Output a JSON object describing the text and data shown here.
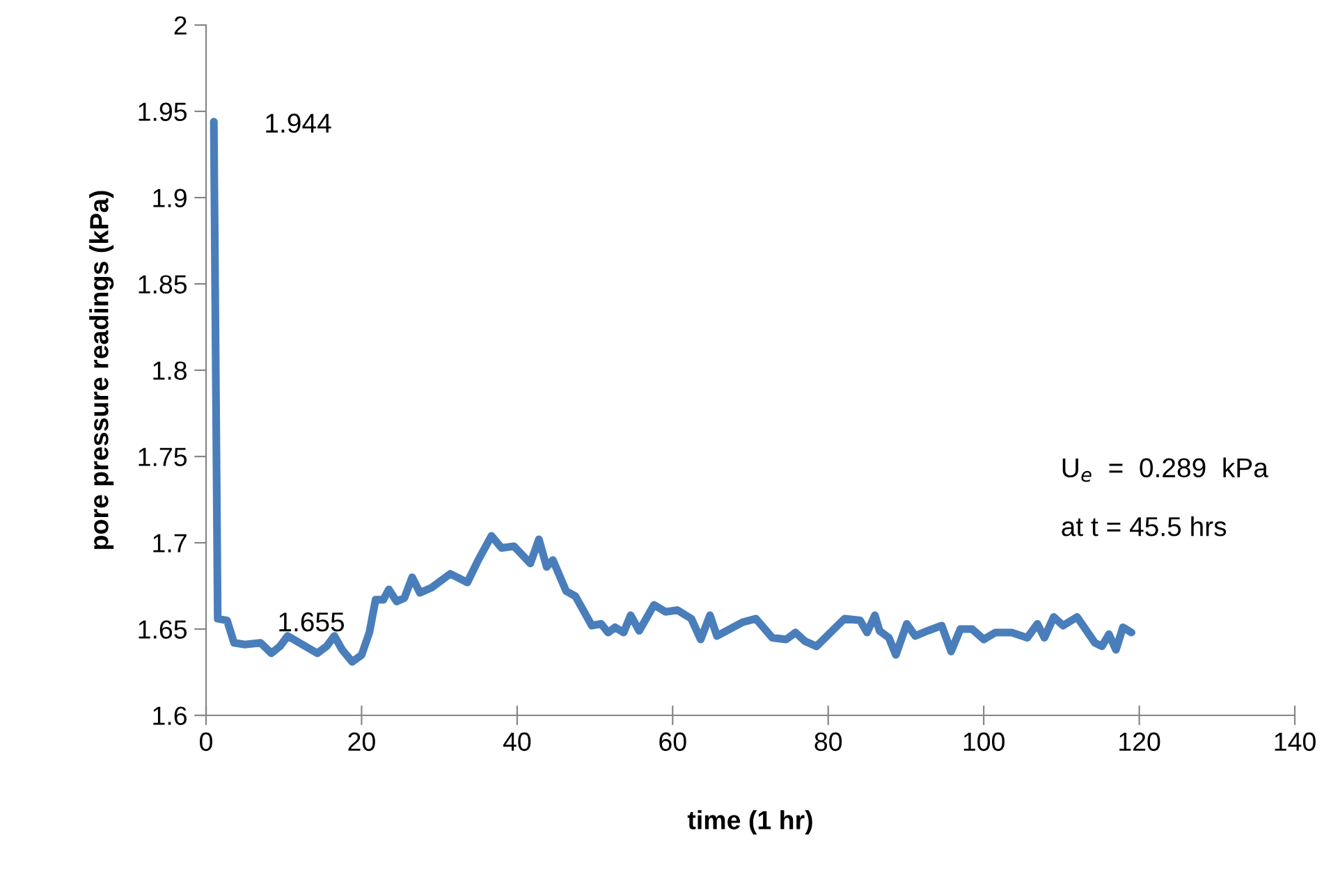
{
  "chart_data": {
    "type": "line",
    "xlabel": "time (1 hr)",
    "ylabel": "pore pressure readings (kPa)",
    "xlim": [
      0,
      140
    ],
    "xticks": [
      0,
      20,
      40,
      60,
      80,
      100,
      120,
      140
    ],
    "ylim": [
      1.6,
      2
    ],
    "yticks": [
      1.6,
      1.65,
      1.7,
      1.75,
      1.8,
      1.85,
      1.9,
      1.95,
      2
    ],
    "grid": false,
    "legend": false,
    "marker": "none",
    "line_style": "solid",
    "series": [
      {
        "color": "#4a7ebb",
        "x": [
          1,
          1.5,
          2.7,
          3.6,
          5,
          7,
          8.4,
          9.5,
          10.5,
          12,
          14.3,
          15.5,
          16.5,
          17.5,
          18.8,
          20,
          21,
          21.8,
          22.8,
          23.5,
          24.5,
          25.5,
          26.5,
          27.5,
          29,
          31.4,
          33.6,
          35,
          36.7,
          38,
          39.6,
          41.7,
          42.8,
          43.8,
          44.6,
          46.3,
          47.5,
          49.6,
          50.8,
          51.7,
          52.6,
          53.7,
          54.6,
          55.7,
          57.6,
          59.1,
          60.6,
          62.4,
          63.6,
          64.8,
          65.7,
          69,
          70.7,
          72.8,
          74.6,
          75.8,
          77,
          78.5,
          82.1,
          84.1,
          85,
          86,
          86.6,
          87.8,
          88.7,
          90.1,
          91.2,
          92.8,
          94.6,
          95.8,
          97,
          98.5,
          100,
          101.5,
          103.6,
          105.6,
          106.9,
          107.8,
          109,
          110.2,
          112,
          114.3,
          115.2,
          116.1,
          117,
          117.9,
          119
        ],
        "values": [
          1.944,
          1.656,
          1.655,
          1.642,
          1.641,
          1.642,
          1.636,
          1.64,
          1.646,
          1.642,
          1.636,
          1.64,
          1.646,
          1.638,
          1.631,
          1.635,
          1.648,
          1.667,
          1.667,
          1.673,
          1.666,
          1.668,
          1.68,
          1.671,
          1.674,
          1.682,
          1.677,
          1.69,
          1.704,
          1.697,
          1.698,
          1.688,
          1.702,
          1.686,
          1.69,
          1.672,
          1.669,
          1.652,
          1.653,
          1.648,
          1.651,
          1.648,
          1.658,
          1.649,
          1.664,
          1.66,
          1.661,
          1.656,
          1.644,
          1.658,
          1.646,
          1.654,
          1.656,
          1.645,
          1.644,
          1.648,
          1.643,
          1.64,
          1.656,
          1.655,
          1.648,
          1.658,
          1.649,
          1.645,
          1.635,
          1.653,
          1.646,
          1.649,
          1.652,
          1.637,
          1.65,
          1.65,
          1.644,
          1.648,
          1.648,
          1.645,
          1.653,
          1.645,
          1.657,
          1.652,
          1.657,
          1.642,
          1.64,
          1.647,
          1.638,
          1.651,
          1.648
        ]
      }
    ],
    "annotations": [
      {
        "text": "1.944",
        "x": 1,
        "y": 1.944
      },
      {
        "text": "1.655",
        "x": 2.7,
        "y": 1.655
      },
      "U$_{e}$  =  0.289  kPa",
      "at t = 45.5 hrs"
    ]
  }
}
